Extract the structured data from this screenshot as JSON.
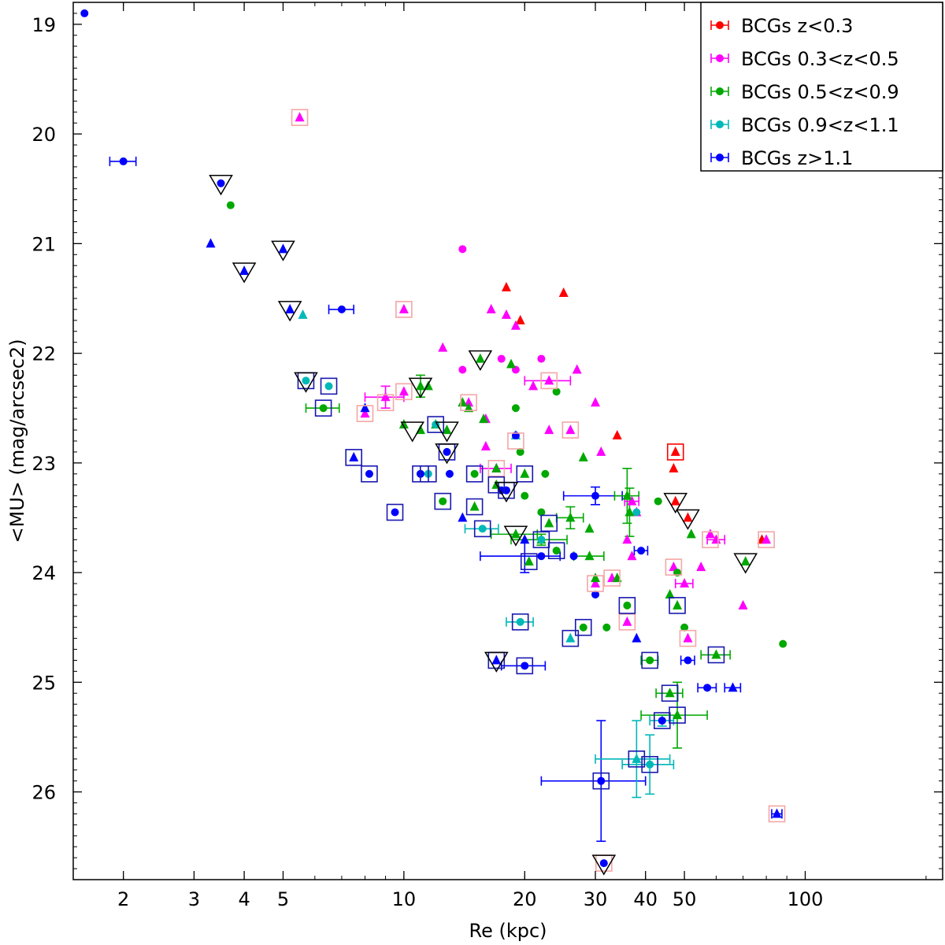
{
  "chart_data": {
    "type": "scatter",
    "xlabel": "Re (kpc)",
    "ylabel": "<MU> (mag/arcsec2)",
    "xscale": "log",
    "xlim": [
      1.5,
      220
    ],
    "ylim": [
      26.8,
      18.8
    ],
    "y_inverted": true,
    "grid": false,
    "legend_position": "top-right",
    "x_ticks": [
      2,
      3,
      4,
      5,
      10,
      20,
      30,
      40,
      50,
      100
    ],
    "y_ticks": [
      19,
      20,
      21,
      22,
      23,
      24,
      25,
      26
    ],
    "colors": {
      "red": "#ff0000",
      "magenta": "#ff00ff",
      "green": "#00a800",
      "cyan": "#00b8b8",
      "blue": "#0000ff",
      "salmon": "#f4a6a6",
      "navy": "#1818b0",
      "black": "#000000"
    },
    "series": [
      {
        "name": "BCGs z<0.3",
        "color": "#ff0000",
        "points": [
          [
            18.0,
            21.4,
            "t"
          ],
          [
            19.5,
            21.7,
            "t"
          ],
          [
            25.0,
            21.45,
            "t"
          ],
          [
            34.0,
            22.75,
            "t"
          ],
          [
            47.0,
            23.05,
            "t"
          ],
          [
            47.5,
            23.35,
            "t"
          ],
          [
            51.0,
            23.5,
            "t"
          ],
          [
            78.0,
            23.7,
            "t"
          ],
          [
            47.5,
            22.9,
            "t"
          ]
        ]
      },
      {
        "name": "BCGs 0.3<z<0.5",
        "color": "#ff00ff",
        "points": [
          [
            5.5,
            19.85,
            "t"
          ],
          [
            14.0,
            21.05,
            "c"
          ],
          [
            10.0,
            21.6,
            "t"
          ],
          [
            16.5,
            21.6,
            "t"
          ],
          [
            18.0,
            21.65,
            "t"
          ],
          [
            19.0,
            21.75,
            "t"
          ],
          [
            12.5,
            21.95,
            "t"
          ],
          [
            17.5,
            22.05,
            "c"
          ],
          [
            19.0,
            22.15,
            "c"
          ],
          [
            14.0,
            22.15,
            "c"
          ],
          [
            22.0,
            22.05,
            "c"
          ],
          [
            27.0,
            22.15,
            "t"
          ],
          [
            21.0,
            22.3,
            "t"
          ],
          [
            23.0,
            22.25,
            "t"
          ],
          [
            10.0,
            22.35,
            "t"
          ],
          [
            9.0,
            22.4,
            "t"
          ],
          [
            14.5,
            22.45,
            "t"
          ],
          [
            30.0,
            22.45,
            "t"
          ],
          [
            16.0,
            22.6,
            "t"
          ],
          [
            8.0,
            22.55,
            "t"
          ],
          [
            19.0,
            22.75,
            "t"
          ],
          [
            23.0,
            22.7,
            "t"
          ],
          [
            26.0,
            22.7,
            "t"
          ],
          [
            31.0,
            22.9,
            "t"
          ],
          [
            17.0,
            23.05,
            "t"
          ],
          [
            37.0,
            23.35,
            "t"
          ],
          [
            38.0,
            23.45,
            "t"
          ],
          [
            36.0,
            23.7,
            "t"
          ],
          [
            37.0,
            23.85,
            "t"
          ],
          [
            47.0,
            23.95,
            "t"
          ],
          [
            58.0,
            23.65,
            "t"
          ],
          [
            60.0,
            23.7,
            "t"
          ],
          [
            55.0,
            23.95,
            "t"
          ],
          [
            50.0,
            24.1,
            "t"
          ],
          [
            51.0,
            24.6,
            "t"
          ],
          [
            33.0,
            24.05,
            "t"
          ],
          [
            30.0,
            24.1,
            "t"
          ],
          [
            36.0,
            24.45,
            "t"
          ],
          [
            70.0,
            24.3,
            "t"
          ],
          [
            80.0,
            23.7,
            "t"
          ],
          [
            16.0,
            22.85,
            "t"
          ]
        ]
      },
      {
        "name": "BCGs 0.5<z<0.9",
        "color": "#00a800",
        "points": [
          [
            3.7,
            20.65,
            "c"
          ],
          [
            15.5,
            22.05,
            "t"
          ],
          [
            18.5,
            22.1,
            "t"
          ],
          [
            24.0,
            22.35,
            "c"
          ],
          [
            19.0,
            22.5,
            "c"
          ],
          [
            11.0,
            22.3,
            "t"
          ],
          [
            11.5,
            22.3,
            "t"
          ],
          [
            14.0,
            22.45,
            "t"
          ],
          [
            14.5,
            22.5,
            "t"
          ],
          [
            6.3,
            22.5,
            "c"
          ],
          [
            10.0,
            22.65,
            "t"
          ],
          [
            11.0,
            22.7,
            "t"
          ],
          [
            12.0,
            22.65,
            "t"
          ],
          [
            12.8,
            22.7,
            "t"
          ],
          [
            15.8,
            22.6,
            "t"
          ],
          [
            19.5,
            22.9,
            "c"
          ],
          [
            28.0,
            22.95,
            "t"
          ],
          [
            17.0,
            23.05,
            "t"
          ],
          [
            20.0,
            23.1,
            "t"
          ],
          [
            22.5,
            23.1,
            "c"
          ],
          [
            15.0,
            23.1,
            "c"
          ],
          [
            20.0,
            23.3,
            "c"
          ],
          [
            12.5,
            23.35,
            "c"
          ],
          [
            15.0,
            23.4,
            "t"
          ],
          [
            17.0,
            23.2,
            "t"
          ],
          [
            22.0,
            23.45,
            "c"
          ],
          [
            26.0,
            23.5,
            "t"
          ],
          [
            23.0,
            23.55,
            "t"
          ],
          [
            29.0,
            23.6,
            "t"
          ],
          [
            36.0,
            23.3,
            "t"
          ],
          [
            36.5,
            23.45,
            "t"
          ],
          [
            43.0,
            23.35,
            "c"
          ],
          [
            19.0,
            23.65,
            "t"
          ],
          [
            22.0,
            23.7,
            "t"
          ],
          [
            24.0,
            23.8,
            "c"
          ],
          [
            20.5,
            23.9,
            "t"
          ],
          [
            29.0,
            23.85,
            "t"
          ],
          [
            30.0,
            24.05,
            "t"
          ],
          [
            34.0,
            24.05,
            "t"
          ],
          [
            36.0,
            24.3,
            "c"
          ],
          [
            32.0,
            24.5,
            "c"
          ],
          [
            28.0,
            24.5,
            "c"
          ],
          [
            46.0,
            24.2,
            "t"
          ],
          [
            48.0,
            24.3,
            "t"
          ],
          [
            50.0,
            24.5,
            "c"
          ],
          [
            48.0,
            24.0,
            "c"
          ],
          [
            52.0,
            23.65,
            "t"
          ],
          [
            71.0,
            23.9,
            "t"
          ],
          [
            41.0,
            24.8,
            "c"
          ],
          [
            60.0,
            24.75,
            "t"
          ],
          [
            46.0,
            25.1,
            "t"
          ],
          [
            48.0,
            25.3,
            "t"
          ],
          [
            88.0,
            24.65,
            "c"
          ]
        ]
      },
      {
        "name": "BCGs 0.9<z<1.1",
        "color": "#00b8b8",
        "points": [
          [
            5.6,
            21.65,
            "t"
          ],
          [
            5.7,
            22.25,
            "c"
          ],
          [
            6.5,
            22.3,
            "c"
          ],
          [
            11.0,
            23.1,
            "c"
          ],
          [
            11.5,
            23.1,
            "c"
          ],
          [
            12.0,
            22.65,
            "c"
          ],
          [
            15.7,
            23.6,
            "c"
          ],
          [
            19.5,
            24.45,
            "c"
          ],
          [
            22.0,
            23.7,
            "c"
          ],
          [
            26.0,
            24.6,
            "t"
          ],
          [
            38.0,
            25.7,
            "t"
          ],
          [
            41.0,
            25.75,
            "c"
          ],
          [
            44.0,
            25.35,
            "c"
          ],
          [
            38.0,
            23.45,
            "c"
          ],
          [
            19.0,
            22.75,
            "t"
          ]
        ]
      },
      {
        "name": "BCGs z>1.1",
        "color": "#0000ff",
        "points": [
          [
            1.6,
            18.9,
            "c"
          ],
          [
            2.0,
            20.25,
            "c"
          ],
          [
            3.5,
            20.45,
            "c"
          ],
          [
            3.3,
            21.0,
            "t"
          ],
          [
            4.0,
            21.25,
            "t"
          ],
          [
            5.0,
            21.05,
            "t"
          ],
          [
            5.2,
            21.6,
            "t"
          ],
          [
            7.0,
            21.6,
            "c"
          ],
          [
            7.5,
            22.95,
            "t"
          ],
          [
            8.0,
            22.5,
            "t"
          ],
          [
            8.2,
            23.1,
            "c"
          ],
          [
            9.5,
            23.45,
            "c"
          ],
          [
            11.0,
            23.1,
            "c"
          ],
          [
            12.8,
            22.9,
            "c"
          ],
          [
            13.0,
            23.1,
            "c"
          ],
          [
            14.0,
            23.5,
            "t"
          ],
          [
            18.0,
            23.25,
            "c"
          ],
          [
            17.5,
            23.25,
            "c"
          ],
          [
            20.0,
            23.7,
            "t"
          ],
          [
            22.0,
            23.85,
            "c"
          ],
          [
            26.5,
            23.85,
            "c"
          ],
          [
            30.0,
            23.3,
            "c"
          ],
          [
            30.0,
            24.2,
            "c"
          ],
          [
            38.0,
            24.6,
            "t"
          ],
          [
            39.0,
            23.8,
            "c"
          ],
          [
            17.0,
            24.8,
            "t"
          ],
          [
            20.0,
            24.85,
            "c"
          ],
          [
            51.0,
            24.8,
            "c"
          ],
          [
            57.0,
            25.05,
            "c"
          ],
          [
            66.0,
            25.05,
            "t"
          ],
          [
            44.0,
            25.35,
            "c"
          ],
          [
            31.0,
            25.9,
            "c"
          ],
          [
            31.5,
            26.65,
            "c"
          ],
          [
            85.0,
            26.2,
            "t"
          ],
          [
            19.0,
            22.75,
            "c"
          ]
        ]
      }
    ],
    "square_markers": [
      [
        5.5,
        19.85,
        "s"
      ],
      [
        10.0,
        21.6,
        "s"
      ],
      [
        10.0,
        22.35,
        "s"
      ],
      [
        9.0,
        22.45,
        "s"
      ],
      [
        8.0,
        22.55,
        "s"
      ],
      [
        14.5,
        22.45,
        "s"
      ],
      [
        23.0,
        22.25,
        "s"
      ],
      [
        26.0,
        22.7,
        "s"
      ],
      [
        19.0,
        22.8,
        "s"
      ],
      [
        17.0,
        23.05,
        "s"
      ],
      [
        47.5,
        22.9,
        "r"
      ],
      [
        58.0,
        23.7,
        "s"
      ],
      [
        80.0,
        23.7,
        "s"
      ],
      [
        47.0,
        23.95,
        "s"
      ],
      [
        51.0,
        24.6,
        "s"
      ],
      [
        30.0,
        24.1,
        "s"
      ],
      [
        33.0,
        24.05,
        "s"
      ],
      [
        36.0,
        24.45,
        "s"
      ],
      [
        31.5,
        26.65,
        "s"
      ],
      [
        85.0,
        26.2,
        "s"
      ],
      [
        6.5,
        22.3,
        "n"
      ],
      [
        6.3,
        22.5,
        "n"
      ],
      [
        5.7,
        22.25,
        "n"
      ],
      [
        7.5,
        22.95,
        "n"
      ],
      [
        8.2,
        23.1,
        "n"
      ],
      [
        9.5,
        23.45,
        "n"
      ],
      [
        11.0,
        23.1,
        "n"
      ],
      [
        11.5,
        23.1,
        "n"
      ],
      [
        12.0,
        22.65,
        "n"
      ],
      [
        12.8,
        22.9,
        "n"
      ],
      [
        12.5,
        23.35,
        "n"
      ],
      [
        15.0,
        23.1,
        "n"
      ],
      [
        15.0,
        23.4,
        "n"
      ],
      [
        15.7,
        23.6,
        "n"
      ],
      [
        17.0,
        23.2,
        "n"
      ],
      [
        18.0,
        23.25,
        "n"
      ],
      [
        20.0,
        23.1,
        "n"
      ],
      [
        22.0,
        23.7,
        "n"
      ],
      [
        20.5,
        23.9,
        "n"
      ],
      [
        24.0,
        23.8,
        "n"
      ],
      [
        23.0,
        23.55,
        "n"
      ],
      [
        19.5,
        24.45,
        "n"
      ],
      [
        26.0,
        24.6,
        "n"
      ],
      [
        28.0,
        24.5,
        "n"
      ],
      [
        36.0,
        24.3,
        "n"
      ],
      [
        48.0,
        24.3,
        "n"
      ],
      [
        41.0,
        24.8,
        "n"
      ],
      [
        60.0,
        24.75,
        "n"
      ],
      [
        46.0,
        25.1,
        "n"
      ],
      [
        48.0,
        25.3,
        "n"
      ],
      [
        44.0,
        25.35,
        "n"
      ],
      [
        38.0,
        25.7,
        "n"
      ],
      [
        41.0,
        25.75,
        "n"
      ],
      [
        31.0,
        25.9,
        "n"
      ],
      [
        17.0,
        24.8,
        "n"
      ],
      [
        20.0,
        24.85,
        "n"
      ]
    ],
    "triangle_markers": [
      [
        3.5,
        20.45
      ],
      [
        4.0,
        21.25
      ],
      [
        5.0,
        21.05
      ],
      [
        5.2,
        21.6
      ],
      [
        5.7,
        22.25
      ],
      [
        11.0,
        22.3
      ],
      [
        10.5,
        22.7
      ],
      [
        12.8,
        22.7
      ],
      [
        15.5,
        22.05
      ],
      [
        19.0,
        23.65
      ],
      [
        18.0,
        23.25
      ],
      [
        47.5,
        23.35
      ],
      [
        51.0,
        23.5
      ],
      [
        71.0,
        23.9
      ],
      [
        17.0,
        24.8
      ],
      [
        31.5,
        26.65
      ],
      [
        12.8,
        22.9
      ]
    ],
    "error_bars": [
      [
        2.0,
        20.25,
        0.15,
        0
      ],
      [
        7.0,
        21.6,
        0.5,
        0
      ],
      [
        30.0,
        23.3,
        5.0,
        0.08
      ],
      [
        20.0,
        23.85,
        4.5,
        0.15
      ],
      [
        39.0,
        23.8,
        1.5,
        0
      ],
      [
        51.0,
        24.8,
        2.0,
        0
      ],
      [
        57.0,
        25.05,
        3.0,
        0
      ],
      [
        66.0,
        25.05,
        3.0,
        0
      ],
      [
        44.0,
        25.35,
        3.0,
        0.05
      ],
      [
        31.0,
        25.9,
        9.0,
        0.55
      ],
      [
        85.0,
        26.2,
        2.5,
        0
      ],
      [
        20.0,
        24.85,
        2.5,
        0
      ],
      [
        36.0,
        23.3,
        2.5,
        0.25
      ],
      [
        36.5,
        23.45,
        0,
        0.22
      ],
      [
        11.0,
        22.3,
        0,
        0.1
      ],
      [
        19.0,
        23.65,
        2.5,
        0
      ],
      [
        22.0,
        23.7,
        3.5,
        0.05
      ],
      [
        48.0,
        25.3,
        9.0,
        0.3
      ],
      [
        46.0,
        25.1,
        3.5,
        0
      ],
      [
        41.0,
        24.8,
        2.0,
        0
      ],
      [
        60.0,
        24.75,
        5.0,
        0
      ],
      [
        29.0,
        23.85,
        2.5,
        0
      ],
      [
        26.0,
        23.5,
        2.0,
        0.1
      ],
      [
        6.3,
        22.5,
        0.6,
        0
      ],
      [
        38.0,
        25.7,
        8.0,
        0.35
      ],
      [
        41.0,
        25.75,
        6.0,
        0.27
      ],
      [
        19.5,
        24.45,
        1.5,
        0
      ],
      [
        15.7,
        23.6,
        1.5,
        0
      ],
      [
        23.0,
        22.25,
        3.0,
        0
      ],
      [
        9.0,
        22.4,
        1.0,
        0.1
      ],
      [
        50.0,
        24.1,
        2.5,
        0
      ],
      [
        60.0,
        23.7,
        3.0,
        0
      ],
      [
        37.0,
        23.35,
        1.5,
        0
      ],
      [
        17.0,
        23.05,
        1.5,
        0
      ]
    ]
  }
}
